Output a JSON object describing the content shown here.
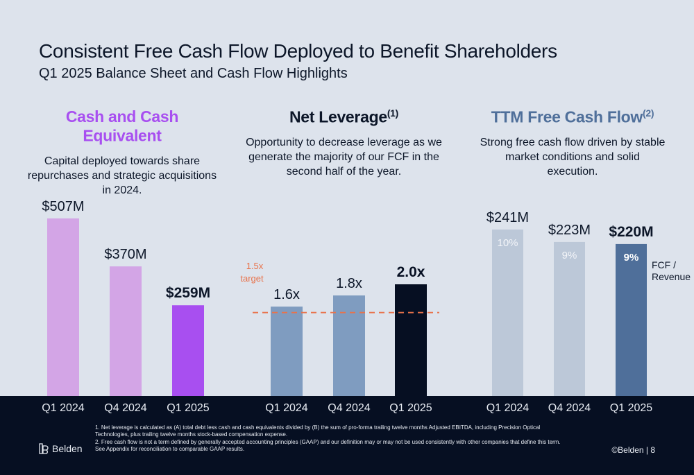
{
  "header": {
    "title": "Consistent Free Cash Flow Deployed to Benefit Shareholders",
    "subtitle": "Q1 2025 Balance Sheet and Cash Flow Highlights"
  },
  "panels": [
    {
      "title": "Cash and Cash Equivalent",
      "sup": "",
      "description": "Capital deployed towards share repurchases and strategic acquisitions in 2024.",
      "title_color": "#a84ff0"
    },
    {
      "title": "Net Leverage",
      "sup": "(1)",
      "description": "Opportunity to decrease leverage as we generate the majority of our FCF in the second half of the year.",
      "title_color": "#0c1628"
    },
    {
      "title": "TTM Free Cash Flow",
      "sup": "(2)",
      "description": "Strong free cash flow driven by stable market conditions and solid execution.",
      "title_color": "#4f6f9a"
    }
  ],
  "chart_data": [
    {
      "type": "bar",
      "categories": [
        "Q1 2024",
        "Q4 2024",
        "Q1 2025"
      ],
      "values": [
        507,
        370,
        259
      ],
      "labels": [
        "$507M",
        "$370M",
        "$259M"
      ],
      "unit": "$M",
      "colors": [
        "#d3a5e6",
        "#d3a5e6",
        "#a84ff0"
      ],
      "emphasis": [
        false,
        false,
        true
      ]
    },
    {
      "type": "bar",
      "categories": [
        "Q1 2024",
        "Q4 2024",
        "Q1 2025"
      ],
      "values": [
        1.6,
        1.8,
        2.0
      ],
      "labels": [
        "1.6x",
        "1.8x",
        "2.0x"
      ],
      "colors": [
        "#7f9cc0",
        "#7f9cc0",
        "#060f22"
      ],
      "emphasis": [
        false,
        false,
        true
      ],
      "reference_line": {
        "value": 1.5,
        "label_line1": "1.5x",
        "label_line2": "target",
        "color": "#e8724a",
        "style": "dashed"
      }
    },
    {
      "type": "bar",
      "categories": [
        "Q1 2024",
        "Q4 2024",
        "Q1 2025"
      ],
      "values": [
        241,
        223,
        220
      ],
      "labels": [
        "$241M",
        "$223M",
        "$220M"
      ],
      "unit": "$M",
      "colors": [
        "#bcc8d8",
        "#bcc8d8",
        "#4f6f9a"
      ],
      "emphasis": [
        false,
        false,
        true
      ],
      "inner_labels": [
        "10%",
        "9%",
        "9%"
      ],
      "inner_legend_line1": "FCF /",
      "inner_legend_line2": "Revenue"
    }
  ],
  "footer": {
    "note1": "1. Net leverage is calculated as (A) total debt less cash and cash equivalents divided by (B) the sum of pro-forma trailing twelve months Adjusted EBITDA, including Precision Optical Technologies, plus trailing twelve months stock-based compensation expense.",
    "note2": "2. Free cash flow is not a term defined by generally accepted accounting principles (GAAP) and our definition may or may not be used consistently with other companies that define this term.  See Appendix for reconciliation to comparable GAAP results.",
    "logo_text": "Belden",
    "page": "©Belden  |  8"
  }
}
